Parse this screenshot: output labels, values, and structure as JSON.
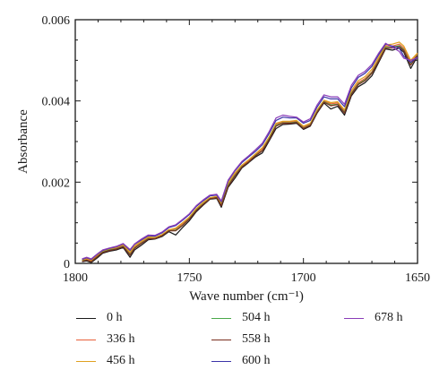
{
  "chart_data": {
    "type": "line",
    "xlabel": "Wave number (cm⁻¹)",
    "ylabel": "Absorbance",
    "xlim": [
      1800,
      1650
    ],
    "ylim": [
      0,
      0.006
    ],
    "x_reversed": true,
    "xticks": [
      1800,
      1750,
      1700,
      1650
    ],
    "xtick_labels": [
      "1800",
      "1750",
      "1700",
      "1650"
    ],
    "yticks": [
      0,
      0.002,
      0.004,
      0.006
    ],
    "ytick_labels": [
      "0",
      "0.002",
      "0.004",
      "0.006"
    ],
    "grid": false,
    "legend_position": "bottom",
    "x": [
      1797,
      1795,
      1793,
      1790,
      1788,
      1785,
      1782,
      1779,
      1776,
      1774,
      1771,
      1768,
      1765,
      1762,
      1759,
      1756,
      1753,
      1750,
      1747,
      1744,
      1741,
      1738,
      1736,
      1733,
      1730,
      1727,
      1724,
      1721,
      1718,
      1715,
      1712,
      1709,
      1706,
      1703,
      1700,
      1697,
      1694,
      1691,
      1688,
      1685,
      1682,
      1679,
      1676,
      1673,
      1670,
      1667,
      1664,
      1661,
      1658,
      1656,
      1653,
      1650
    ],
    "series": [
      {
        "name": "0 h",
        "color": "#1a1a1a",
        "values": [
          4e-05,
          6e-05,
          2e-05,
          0.00015,
          0.00025,
          0.0003,
          0.00033,
          0.00039,
          0.00015,
          0.00033,
          0.00045,
          0.00058,
          0.0006,
          0.00066,
          0.00078,
          0.0007,
          0.00088,
          0.00105,
          0.00127,
          0.00143,
          0.00158,
          0.0016,
          0.00138,
          0.00187,
          0.0021,
          0.00235,
          0.00248,
          0.00262,
          0.00272,
          0.00302,
          0.00332,
          0.00342,
          0.00343,
          0.00345,
          0.0033,
          0.00338,
          0.0037,
          0.00395,
          0.0038,
          0.00387,
          0.00365,
          0.00412,
          0.00435,
          0.00445,
          0.00462,
          0.00495,
          0.00528,
          0.00525,
          0.0053,
          0.0052,
          0.0048,
          0.0051
        ]
      },
      {
        "name": "336 h",
        "color": "#e8603a",
        "values": [
          8e-05,
          0.0001,
          6e-05,
          0.0002,
          0.0003,
          0.00035,
          0.00038,
          0.00044,
          0.00025,
          0.0004,
          0.00052,
          0.00063,
          0.00062,
          0.00069,
          0.00082,
          0.00085,
          0.00097,
          0.00112,
          0.00133,
          0.00148,
          0.0016,
          0.00163,
          0.00145,
          0.00195,
          0.0022,
          0.0024,
          0.00252,
          0.00268,
          0.00282,
          0.0031,
          0.00343,
          0.00348,
          0.00348,
          0.0035,
          0.00335,
          0.00343,
          0.00375,
          0.004,
          0.00393,
          0.00395,
          0.00375,
          0.0042,
          0.00445,
          0.00455,
          0.00472,
          0.00503,
          0.00535,
          0.00535,
          0.0054,
          0.0053,
          0.00495,
          0.00515
        ]
      },
      {
        "name": "456 h",
        "color": "#e0a020",
        "values": [
          8e-05,
          0.00012,
          8e-05,
          0.00022,
          0.00031,
          0.00036,
          0.0004,
          0.00046,
          0.00028,
          0.00043,
          0.00055,
          0.00065,
          0.00064,
          0.00071,
          0.00083,
          0.00087,
          0.001,
          0.00114,
          0.00135,
          0.0015,
          0.00162,
          0.00165,
          0.00148,
          0.00198,
          0.00223,
          0.00242,
          0.00255,
          0.0027,
          0.00285,
          0.00312,
          0.00345,
          0.0035,
          0.0035,
          0.00352,
          0.00338,
          0.00345,
          0.00378,
          0.00402,
          0.00396,
          0.00398,
          0.00378,
          0.00425,
          0.0045,
          0.0046,
          0.00478,
          0.00508,
          0.00538,
          0.0054,
          0.00545,
          0.00535,
          0.005,
          0.00518
        ]
      },
      {
        "name": "504 h",
        "color": "#4aa84a",
        "values": [
          6e-05,
          8e-05,
          4e-05,
          0.00018,
          0.00028,
          0.00033,
          0.00036,
          0.00042,
          0.00022,
          0.00038,
          0.0005,
          0.00061,
          0.00061,
          0.00068,
          0.0008,
          0.00082,
          0.00094,
          0.0011,
          0.00131,
          0.00146,
          0.00159,
          0.00162,
          0.00143,
          0.00192,
          0.00217,
          0.00238,
          0.0025,
          0.00266,
          0.00278,
          0.00307,
          0.0034,
          0.00346,
          0.00346,
          0.00348,
          0.00333,
          0.00341,
          0.00373,
          0.00398,
          0.0039,
          0.00392,
          0.00372,
          0.00418,
          0.00442,
          0.00452,
          0.0047,
          0.005,
          0.00532,
          0.00532,
          0.00536,
          0.00526,
          0.0049,
          0.00513
        ]
      },
      {
        "name": "558 h",
        "color": "#7a2e1e",
        "values": [
          5e-05,
          8e-05,
          4e-05,
          0.00018,
          0.00027,
          0.00032,
          0.00035,
          0.00041,
          0.0002,
          0.00037,
          0.00049,
          0.0006,
          0.00061,
          0.00068,
          0.0008,
          0.0008,
          0.00093,
          0.00109,
          0.0013,
          0.00145,
          0.00159,
          0.00162,
          0.00142,
          0.0019,
          0.00215,
          0.00237,
          0.0025,
          0.00265,
          0.00277,
          0.00305,
          0.00338,
          0.00345,
          0.00345,
          0.00347,
          0.00332,
          0.0034,
          0.00372,
          0.00397,
          0.00388,
          0.00391,
          0.0037,
          0.00416,
          0.0044,
          0.0045,
          0.00468,
          0.00498,
          0.0053,
          0.0053,
          0.00534,
          0.00524,
          0.00488,
          0.00512
        ]
      },
      {
        "name": "600 h",
        "color": "#3b33a8",
        "values": [
          0.0001,
          0.00014,
          0.0001,
          0.00024,
          0.00032,
          0.00037,
          0.00041,
          0.00048,
          0.00032,
          0.00047,
          0.00058,
          0.00068,
          0.00067,
          0.00075,
          0.00088,
          0.00093,
          0.00106,
          0.0012,
          0.0014,
          0.00154,
          0.00166,
          0.00168,
          0.00152,
          0.00203,
          0.00228,
          0.00248,
          0.00262,
          0.00276,
          0.00292,
          0.0032,
          0.00352,
          0.0036,
          0.00358,
          0.00358,
          0.00345,
          0.00352,
          0.00385,
          0.0041,
          0.00405,
          0.00405,
          0.00386,
          0.00432,
          0.00458,
          0.00468,
          0.00485,
          0.00514,
          0.0054,
          0.00535,
          0.0053,
          0.0051,
          0.00495,
          0.00508
        ]
      },
      {
        "name": "678 h",
        "color": "#8a3cb8",
        "values": [
          0.00011,
          0.00015,
          0.00011,
          0.00025,
          0.00033,
          0.00038,
          0.00042,
          0.00049,
          0.00034,
          0.00048,
          0.0006,
          0.0007,
          0.00069,
          0.00077,
          0.0009,
          0.00095,
          0.00108,
          0.00122,
          0.00142,
          0.00156,
          0.00168,
          0.0017,
          0.00154,
          0.00205,
          0.0023,
          0.00251,
          0.00265,
          0.0028,
          0.00296,
          0.00325,
          0.00358,
          0.00365,
          0.00362,
          0.0036,
          0.00348,
          0.00356,
          0.0039,
          0.00415,
          0.0041,
          0.0041,
          0.00392,
          0.00438,
          0.00463,
          0.00473,
          0.0049,
          0.00518,
          0.00542,
          0.00532,
          0.00522,
          0.00505,
          0.005,
          0.00506
        ]
      }
    ]
  }
}
